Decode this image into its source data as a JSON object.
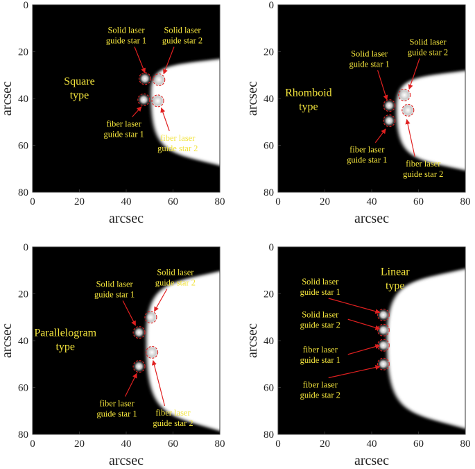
{
  "chart_data": [
    {
      "type": "heatmap",
      "title": "Square type",
      "xlabel": "arcsec",
      "ylabel": "arcsec",
      "xlim": [
        0,
        80
      ],
      "ylim": [
        0,
        80
      ],
      "y_inverted": true,
      "xticks": [
        0,
        20,
        40,
        60,
        80
      ],
      "yticks": [
        0,
        20,
        40,
        60,
        80
      ],
      "background_color": "#000000",
      "beam_color": "#ffffff",
      "annotation_color": "#f2e33c",
      "arrow_color": "#e02020",
      "beam": {
        "apex": [
          51,
          38
        ],
        "top_edge": [
          80,
          23
        ],
        "bottom_edge": [
          80,
          69
        ]
      },
      "stars": [
        {
          "x": 48,
          "y": 31.5,
          "label": "Solid laser guide star 1"
        },
        {
          "x": 54,
          "y": 32,
          "label": "Solid laser guide star 2"
        },
        {
          "x": 47.5,
          "y": 40.5,
          "label": "fiber laser guide star 1"
        },
        {
          "x": 53.5,
          "y": 41,
          "label": "fiber laser guide star 2"
        }
      ],
      "annotations": [
        {
          "lines": [
            "Solid laser",
            "guide star 1"
          ],
          "pos": [
            40,
            12
          ],
          "arrow_to": [
            48,
            29
          ]
        },
        {
          "lines": [
            "Solid laser",
            "guide star 2"
          ],
          "pos": [
            64,
            12
          ],
          "arrow_to": [
            56,
            29.5
          ]
        },
        {
          "lines": [
            "fiber laser",
            "guide star 1"
          ],
          "pos": [
            39,
            52
          ],
          "arrow_to": [
            46.5,
            43.5
          ]
        },
        {
          "lines": [
            "fiber laser",
            "guide star 2"
          ],
          "pos": [
            62,
            58
          ],
          "arrow_to": [
            55,
            44
          ]
        }
      ],
      "title_pos": [
        20,
        34
      ]
    },
    {
      "type": "heatmap",
      "title": "Rhomboid type",
      "xlabel": "arcsec",
      "ylabel": "arcsec",
      "xlim": [
        0,
        80
      ],
      "ylim": [
        0,
        80
      ],
      "y_inverted": true,
      "xticks": [
        0,
        20,
        40,
        60,
        80
      ],
      "yticks": [
        0,
        20,
        40,
        60,
        80
      ],
      "background_color": "#000000",
      "beam_color": "#ffffff",
      "annotation_color": "#f2e33c",
      "arrow_color": "#e02020",
      "beam": {
        "apex": [
          51,
          44
        ],
        "top_edge": [
          80,
          28
        ],
        "bottom_edge": [
          80,
          71
        ]
      },
      "stars": [
        {
          "x": 54,
          "y": 38.5,
          "label": "Solid laser guide star 2"
        },
        {
          "x": 47.5,
          "y": 43,
          "label": "Solid laser guide star 1"
        },
        {
          "x": 47.5,
          "y": 49.5,
          "label": "fiber laser guide star 1"
        },
        {
          "x": 55.5,
          "y": 45,
          "label": "fiber laser guide star 2"
        }
      ],
      "annotations": [
        {
          "lines": [
            "Solid laser",
            "guide star 1"
          ],
          "pos": [
            39,
            22
          ],
          "arrow_to": [
            46.5,
            40.5
          ]
        },
        {
          "lines": [
            "Solid laser",
            "guide star 2"
          ],
          "pos": [
            64,
            17
          ],
          "arrow_to": [
            56,
            36
          ]
        },
        {
          "lines": [
            "fiber laser",
            "guide star 1"
          ],
          "pos": [
            38,
            63
          ],
          "arrow_to": [
            46,
            53
          ]
        },
        {
          "lines": [
            "fiber laser",
            "guide star 2"
          ],
          "pos": [
            62,
            69
          ],
          "arrow_to": [
            55,
            49
          ]
        }
      ],
      "title_pos": [
        13,
        39
      ]
    },
    {
      "type": "heatmap",
      "title": "Parallelogram type",
      "xlabel": "arcsec",
      "ylabel": "arcsec",
      "xlim": [
        0,
        80
      ],
      "ylim": [
        0,
        80
      ],
      "y_inverted": true,
      "xticks": [
        0,
        20,
        40,
        60,
        80
      ],
      "yticks": [
        0,
        20,
        40,
        60,
        80
      ],
      "background_color": "#000000",
      "beam_color": "#ffffff",
      "annotation_color": "#f2e33c",
      "arrow_color": "#e02020",
      "beam": {
        "apex": [
          49,
          40
        ],
        "top_edge": [
          80,
          10
        ],
        "bottom_edge": [
          80,
          79
        ]
      },
      "stars": [
        {
          "x": 50.5,
          "y": 30,
          "label": "Solid laser guide star 2"
        },
        {
          "x": 45.5,
          "y": 36.5,
          "label": "Solid laser guide star 1"
        },
        {
          "x": 51,
          "y": 45,
          "label": "fiber laser guide star 2"
        },
        {
          "x": 45.5,
          "y": 51,
          "label": "fiber laser guide star 1"
        }
      ],
      "annotations": [
        {
          "lines": [
            "Solid laser",
            "guide star 1"
          ],
          "pos": [
            35,
            17
          ],
          "arrow_to": [
            44,
            33.5
          ]
        },
        {
          "lines": [
            "Solid laser",
            "guide star 2"
          ],
          "pos": [
            61,
            12
          ],
          "arrow_to": [
            52,
            27.5
          ]
        },
        {
          "lines": [
            "fiber laser",
            "guide star 1"
          ],
          "pos": [
            36,
            68
          ],
          "arrow_to": [
            44.5,
            54
          ]
        },
        {
          "lines": [
            "fiber laser",
            "guide star 2"
          ],
          "pos": [
            60,
            72
          ],
          "arrow_to": [
            51.5,
            48.5
          ]
        }
      ],
      "title_pos": [
        14,
        38
      ]
    },
    {
      "type": "heatmap",
      "title": "Linear type",
      "xlabel": "arcsec",
      "ylabel": "arcsec",
      "xlim": [
        0,
        80
      ],
      "ylim": [
        0,
        80
      ],
      "y_inverted": true,
      "xticks": [
        0,
        20,
        40,
        60,
        80
      ],
      "yticks": [
        0,
        20,
        40,
        60,
        80
      ],
      "background_color": "#000000",
      "beam_color": "#ffffff",
      "annotation_color": "#f2e33c",
      "arrow_color": "#e02020",
      "beam": {
        "apex": [
          47,
          40
        ],
        "top_edge": [
          80,
          9
        ],
        "bottom_edge": [
          80,
          78
        ]
      },
      "stars": [
        {
          "x": 45,
          "y": 29,
          "label": "Solid laser guide star 1"
        },
        {
          "x": 45,
          "y": 35.5,
          "label": "Solid laser guide star 2"
        },
        {
          "x": 45,
          "y": 42,
          "label": "fiber laser guide star 1"
        },
        {
          "x": 45,
          "y": 50,
          "label": "fiber laser guide star 2"
        }
      ],
      "annotations": [
        {
          "lines": [
            "Solid laser",
            "guide star 1"
          ],
          "pos": [
            18,
            16
          ],
          "arrow_to": [
            43.5,
            28
          ]
        },
        {
          "lines": [
            "Solid laser",
            "guide star 2"
          ],
          "pos": [
            18,
            30
          ],
          "arrow_to": [
            43.5,
            35
          ]
        },
        {
          "lines": [
            "fiber laser",
            "guide star 1"
          ],
          "pos": [
            18,
            45
          ],
          "arrow_to": [
            43.5,
            42
          ]
        },
        {
          "lines": [
            "fiber laser",
            "guide star 2"
          ],
          "pos": [
            18,
            60
          ],
          "arrow_to": [
            43.5,
            51
          ]
        }
      ],
      "title_pos": [
        50,
        12
      ]
    }
  ]
}
